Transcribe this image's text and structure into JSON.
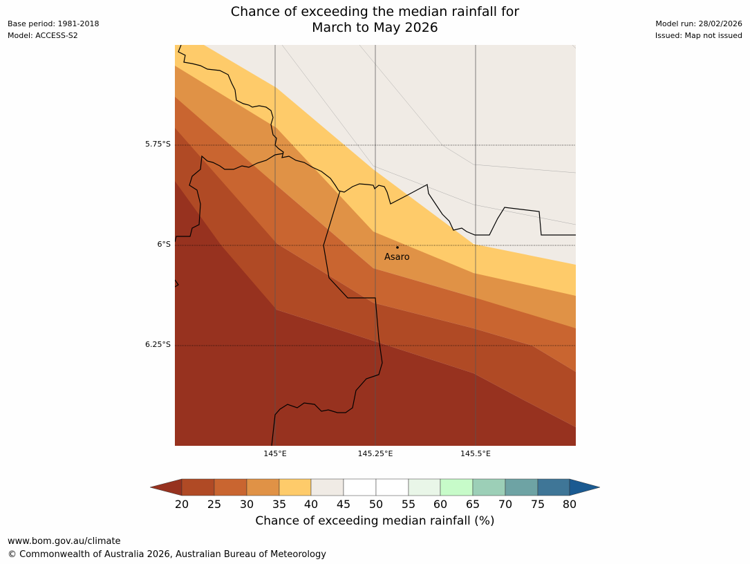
{
  "title": {
    "line1": "Chance of exceeding the median rainfall for",
    "line2": "March to May 2026"
  },
  "meta_left": {
    "base_period": "Base period: 1981-2018",
    "model": "Model: ACCESS-S2"
  },
  "meta_right": {
    "model_run": "Model run: 28/02/2026",
    "issued": "Issued: Map not issued"
  },
  "map": {
    "lat_labels": [
      "5.75°S",
      "6°S",
      "6.25°S"
    ],
    "lon_labels": [
      "145°E",
      "145.25°E",
      "145.5°E"
    ],
    "place": {
      "name": "Asaro"
    }
  },
  "colorbar": {
    "ticks": [
      "20",
      "25",
      "30",
      "35",
      "40",
      "45",
      "50",
      "55",
      "60",
      "65",
      "70",
      "75",
      "80"
    ],
    "colors": [
      "#97321f",
      "#b04a25",
      "#c96530",
      "#e09246",
      "#fecb6a",
      "#f0ebe5",
      "#ffffff",
      "#ffffff",
      "#e9f6e8",
      "#c7fbc9",
      "#9ccfb7",
      "#6ea3a4",
      "#3f7697"
    ],
    "under_color": "#97321f",
    "over_color": "#1a5a91",
    "label": "Chance of exceeding median rainfall (%)"
  },
  "footer": {
    "url": "www.bom.gov.au/climate",
    "copyright": "© Commonwealth of Australia 2026, Australian Bureau of Meteorology"
  }
}
